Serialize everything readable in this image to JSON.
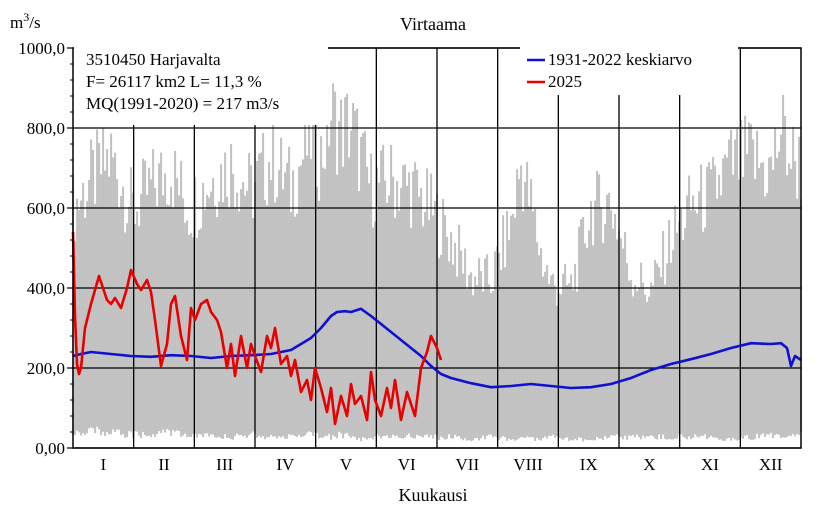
{
  "chart_data": {
    "type": "line",
    "title": "Virtaama",
    "ylabel": "m3/s",
    "xlabel": "Kuukausi",
    "ylim": [
      0,
      1000
    ],
    "yticks": [
      "0,00",
      "200,0",
      "400,0",
      "600,0",
      "800,0",
      "1000,0"
    ],
    "ytick_values": [
      0,
      200,
      400,
      600,
      800,
      1000
    ],
    "categories": [
      "I",
      "II",
      "III",
      "IV",
      "V",
      "VI",
      "VII",
      "VIII",
      "IX",
      "X",
      "XI",
      "XII"
    ],
    "grid": true,
    "legend_position": "top-right",
    "info": {
      "station": "3510450 Harjavalta",
      "area": "F=  26117 km2 L=  11,3 %",
      "mq": "MQ(1991-2020) = 217 m3/s"
    },
    "colors": {
      "mean": "#1010d0",
      "current": "#e80000",
      "range": "#c0c0c0"
    },
    "series": [
      {
        "name": "1931-2022 keskiarvo",
        "x": [
          1,
          5,
          10,
          20,
          30,
          40,
          50,
          60,
          70,
          80,
          90,
          100,
          110,
          120,
          125,
          130,
          133,
          137,
          140,
          145,
          150,
          155,
          160,
          165,
          170,
          175,
          180,
          185,
          190,
          200,
          210,
          220,
          230,
          240,
          250,
          260,
          270,
          280,
          290,
          300,
          310,
          320,
          330,
          340,
          350,
          355,
          358,
          360,
          362,
          365
        ],
        "values": [
          230,
          235,
          240,
          235,
          230,
          228,
          232,
          230,
          225,
          230,
          232,
          235,
          245,
          275,
          300,
          330,
          340,
          342,
          340,
          348,
          330,
          310,
          290,
          270,
          250,
          230,
          205,
          185,
          175,
          162,
          152,
          155,
          160,
          155,
          150,
          152,
          160,
          175,
          195,
          210,
          222,
          235,
          250,
          262,
          260,
          262,
          250,
          205,
          230,
          220
        ]
      },
      {
        "name": "2025",
        "x": [
          1,
          2,
          3,
          4,
          5,
          7,
          10,
          14,
          18,
          20,
          22,
          25,
          28,
          30,
          33,
          35,
          38,
          40,
          42,
          45,
          48,
          50,
          52,
          55,
          58,
          60,
          62,
          65,
          68,
          70,
          73,
          75,
          78,
          80,
          82,
          85,
          88,
          90,
          92,
          95,
          98,
          100,
          102,
          105,
          108,
          110,
          112,
          115,
          118,
          120,
          122,
          125,
          128,
          130,
          132,
          135,
          138,
          140,
          142,
          145,
          148,
          150,
          152,
          155,
          158,
          160,
          162,
          165,
          168,
          170,
          172,
          175,
          178,
          180,
          183,
          185
        ],
        "values": [
          540,
          330,
          210,
          185,
          200,
          300,
          360,
          430,
          370,
          360,
          375,
          350,
          400,
          445,
          410,
          395,
          420,
          390,
          320,
          205,
          260,
          360,
          380,
          280,
          220,
          350,
          320,
          360,
          370,
          340,
          320,
          290,
          200,
          260,
          180,
          280,
          200,
          260,
          230,
          190,
          280,
          250,
          300,
          210,
          230,
          180,
          220,
          140,
          170,
          120,
          200,
          150,
          90,
          150,
          60,
          130,
          80,
          160,
          110,
          130,
          70,
          190,
          120,
          80,
          150,
          100,
          170,
          70,
          140,
          110,
          80,
          200,
          240,
          280,
          250,
          220
        ]
      }
    ],
    "range_band": {
      "x": [
        1,
        10,
        20,
        31,
        40,
        50,
        59,
        70,
        80,
        90,
        100,
        110,
        120,
        125,
        130,
        135,
        140,
        145,
        150,
        160,
        170,
        180,
        190,
        200,
        210,
        220,
        225,
        230,
        235,
        240,
        250,
        260,
        270,
        280,
        290,
        300,
        310,
        320,
        330,
        340,
        350,
        355,
        360,
        365
      ],
      "max": [
        640,
        720,
        780,
        640,
        700,
        750,
        640,
        720,
        760,
        690,
        780,
        700,
        840,
        780,
        900,
        850,
        870,
        780,
        700,
        720,
        700,
        640,
        560,
        460,
        450,
        600,
        760,
        650,
        520,
        440,
        430,
        640,
        660,
        470,
        420,
        560,
        650,
        680,
        760,
        780,
        740,
        860,
        780,
        760
      ],
      "min": [
        30,
        40,
        35,
        30,
        30,
        35,
        30,
        30,
        25,
        30,
        25,
        30,
        30,
        30,
        25,
        30,
        30,
        20,
        25,
        25,
        30,
        25,
        25,
        20,
        25,
        20,
        25,
        20,
        20,
        25,
        20,
        20,
        25,
        25,
        25,
        25,
        25,
        25,
        20,
        25,
        30,
        30,
        25,
        30
      ]
    }
  }
}
